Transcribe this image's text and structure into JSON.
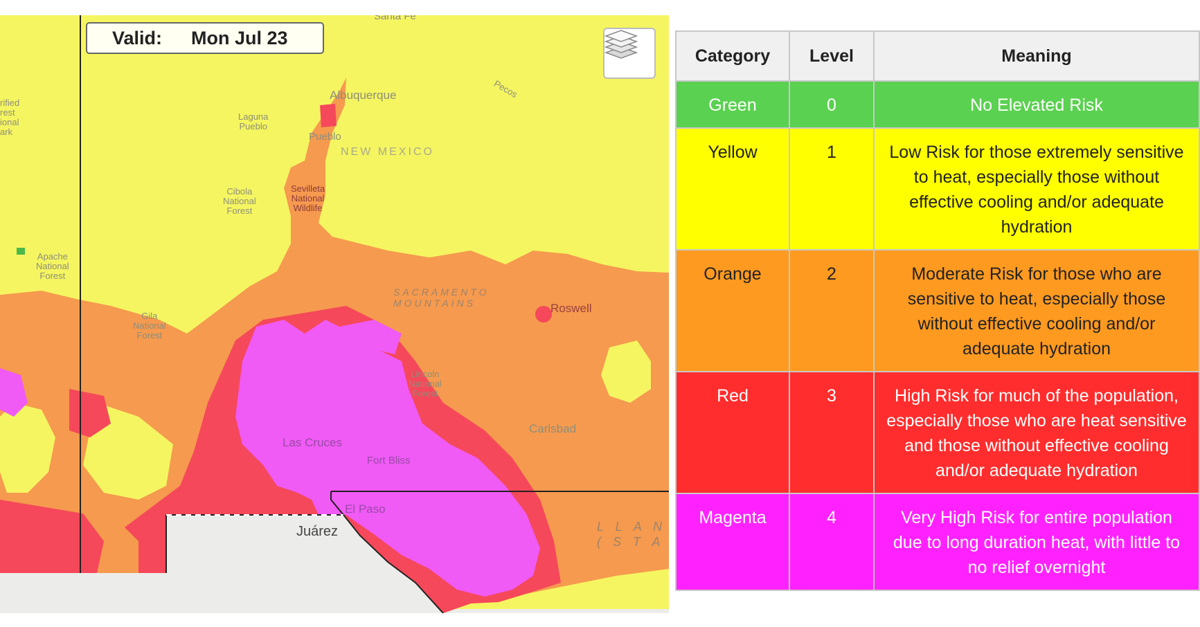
{
  "map": {
    "valid_label": "Valid:",
    "valid_date": "Mon  Jul 23",
    "layers_icon": "layers-icon",
    "places": {
      "santa_fe": "Santa Fe",
      "albuquerque": "Albuquerque",
      "laguna_pueblo": "Laguna\nPueblo",
      "pueblo": "Pueblo",
      "new_mexico": "NEW MEXICO",
      "pecos": "Pecos",
      "cibola_nf": "Cibola\nNational\nForest",
      "sevilleta": "Sevilleta\nNational\nWildlife",
      "apache_nf": "Apache\nNational\nForest",
      "petrified": "rified\nrest\nional\nark",
      "sacramento": "SACRAMENTO\nMOUNTAINS",
      "roswell": "Roswell",
      "gila_nf": "Gila\nNational\nForest",
      "lincoln_nf": "Lincoln\nNational\nForest",
      "carlsbad": "Carlsbad",
      "las_cruces": "Las Cruces",
      "fort_bliss": "Fort Bliss",
      "el_paso": "El Paso",
      "juarez": "Juárez",
      "llano": "L L A N\n( S T A"
    }
  },
  "legend": {
    "headers": {
      "category": "Category",
      "level": "Level",
      "meaning": "Meaning"
    },
    "rows": [
      {
        "category": "Green",
        "level": "0",
        "meaning": "No Elevated Risk",
        "color": "#5ad150",
        "text_color": "#ffffff"
      },
      {
        "category": "Yellow",
        "level": "1",
        "meaning": "Low Risk for those extremely sensitive to heat, especially those without effective cooling and/or adequate hydration",
        "color": "#ffff00",
        "text_color": "#222222"
      },
      {
        "category": "Orange",
        "level": "2",
        "meaning": "Moderate Risk for those who are sensitive to heat, especially those without effective cooling and/or adequate hydration",
        "color": "#ff9a20",
        "text_color": "#222222"
      },
      {
        "category": "Red",
        "level": "3",
        "meaning": "High Risk for much of the population, especially those who are heat sensitive and those without effective cooling and/or adequate hydration",
        "color": "#ff2d2d",
        "text_color": "#ffffff"
      },
      {
        "category": "Magenta",
        "level": "4",
        "meaning": "Very High Risk for entire population due to long duration heat, with little to no relief overnight",
        "color": "#ff22ff",
        "text_color": "#ffffff"
      }
    ]
  },
  "colors": {
    "yellow_map": "#f5f561",
    "orange_map": "#f59a4e",
    "red_map": "#f5485a",
    "magenta_map": "#f05af5",
    "basemap": "#ececea"
  }
}
